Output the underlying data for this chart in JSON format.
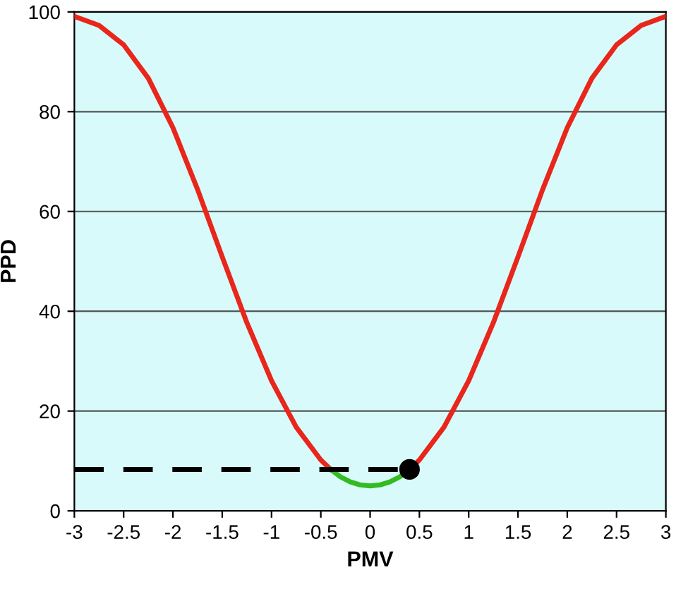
{
  "chart_data": {
    "type": "line",
    "xlabel": "PMV",
    "ylabel": "PPD",
    "xlim": [
      -3,
      3
    ],
    "ylim": [
      0,
      100
    ],
    "xticks": [
      -3,
      -2.5,
      -2,
      -1.5,
      -1,
      -0.5,
      0,
      0.5,
      1,
      1.5,
      2,
      2.5,
      3
    ],
    "yticks": [
      0,
      20,
      40,
      60,
      80,
      100
    ],
    "grid": "y",
    "legend": false,
    "series": [
      {
        "color": "#e8261c",
        "line_style": "solid",
        "x": [
          -3,
          -2.75,
          -2.5,
          -2.25,
          -2,
          -1.75,
          -1.5,
          -1.25,
          -1,
          -0.75,
          -0.5,
          -0.4
        ],
        "values": [
          99.1,
          97.3,
          93.4,
          86.7,
          76.8,
          64.4,
          50.9,
          37.7,
          26.1,
          16.8,
          10.2,
          8.3
        ]
      },
      {
        "color": "#33bb22",
        "line_style": "solid",
        "x": [
          -0.4,
          -0.3,
          -0.2,
          -0.1,
          0,
          0.1,
          0.2,
          0.3,
          0.4
        ],
        "values": [
          8.3,
          6.8,
          5.8,
          5.2,
          5,
          5.2,
          5.8,
          6.8,
          8.3
        ]
      },
      {
        "color": "#e8261c",
        "line_style": "solid",
        "x": [
          0.4,
          0.5,
          0.75,
          1,
          1.25,
          1.5,
          1.75,
          2,
          2.25,
          2.5,
          2.75,
          3
        ],
        "values": [
          8.3,
          10.2,
          16.8,
          26.1,
          37.7,
          50.9,
          64.4,
          76.8,
          86.7,
          93.4,
          97.3,
          99.1
        ]
      },
      {
        "color": "#000000",
        "line_style": "dashed",
        "x": [
          -3,
          0.4
        ],
        "values": [
          8.3,
          8.3
        ]
      },
      {
        "type": "scatter",
        "color": "#000000",
        "marker": "circle",
        "x": [
          0.4
        ],
        "values": [
          8.3
        ]
      }
    ]
  }
}
